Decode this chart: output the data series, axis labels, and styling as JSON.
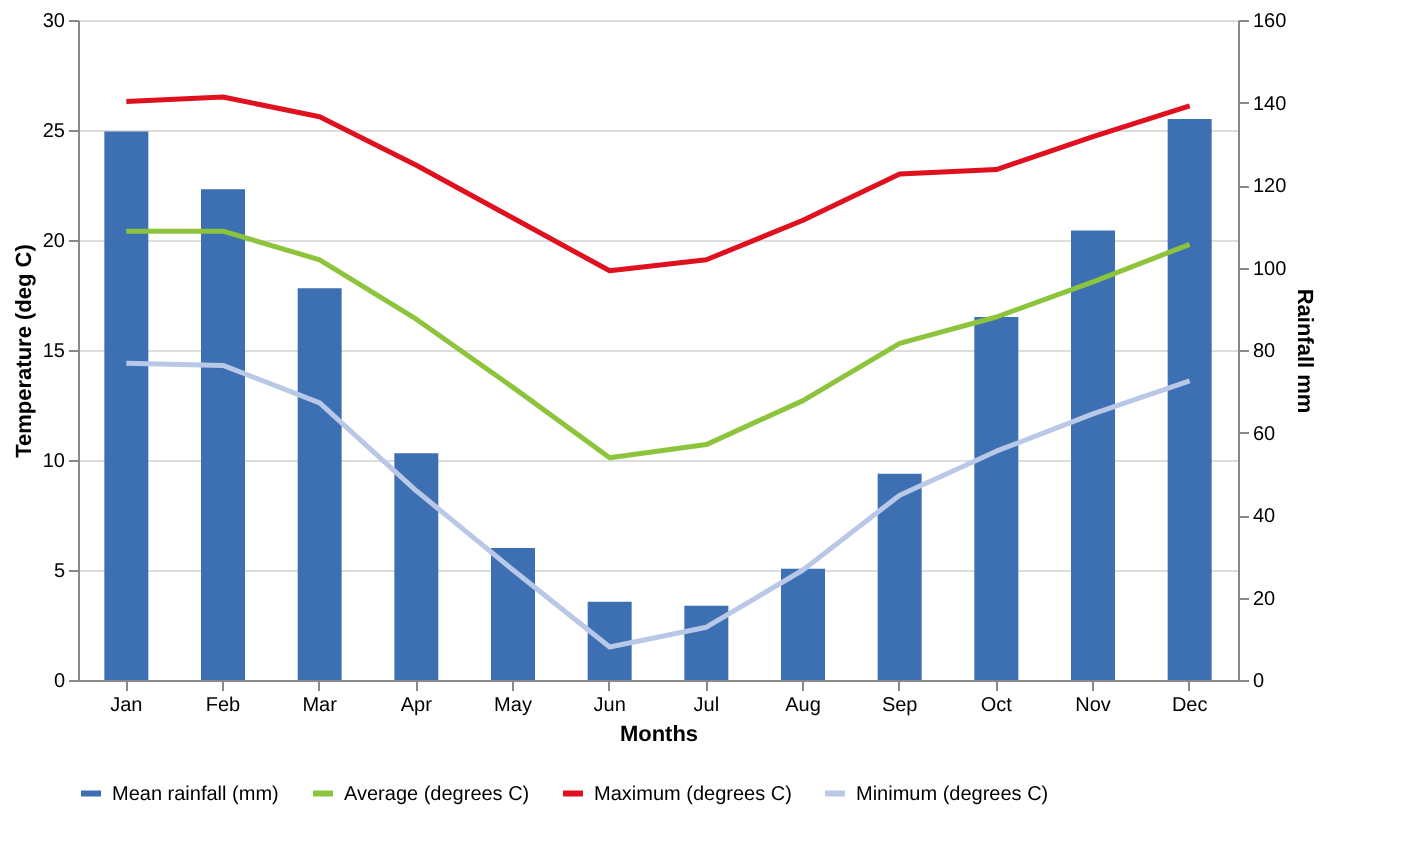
{
  "chart_data": {
    "type": "bar",
    "xlabel": "Months",
    "ylabel": "Temperature (deg C)",
    "y2label": "Rainfall mm",
    "categories": [
      "Jan",
      "Feb",
      "Mar",
      "Apr",
      "May",
      "Jun",
      "Jul",
      "Aug",
      "Sep",
      "Oct",
      "Nov",
      "Dec"
    ],
    "series": [
      {
        "name": "Mean rainfall (mm)",
        "axis": "y2",
        "color": "#3d6fb3",
        "values": [
          133,
          119,
          95,
          55,
          32,
          19,
          18,
          27,
          50,
          88,
          109,
          136
        ]
      },
      {
        "name": "Average (degrees C)",
        "type": "line",
        "color": "#8cc43c",
        "values": [
          20.4,
          20.4,
          19.1,
          16.4,
          13.3,
          10.1,
          10.7,
          12.7,
          15.3,
          16.5,
          18.1,
          19.8
        ]
      },
      {
        "name": "Maximum (degrees C)",
        "type": "line",
        "color": "#e0101e",
        "values": [
          26.3,
          26.5,
          25.6,
          23.4,
          21.0,
          18.6,
          19.1,
          20.9,
          23.0,
          23.2,
          24.7,
          26.1
        ]
      },
      {
        "name": "Minimum (degrees C)",
        "type": "line",
        "color": "#b9c8e6",
        "values": [
          14.4,
          14.3,
          12.6,
          8.6,
          5.0,
          1.5,
          2.4,
          5.0,
          8.4,
          10.4,
          12.1,
          13.6
        ]
      }
    ],
    "ylim": [
      0,
      30
    ],
    "yticks": [
      0,
      5,
      10,
      15,
      20,
      25,
      30
    ],
    "y2lim": [
      0,
      160
    ],
    "y2ticks": [
      0,
      20,
      40,
      60,
      80,
      100,
      120,
      140,
      160
    ],
    "grid": "y",
    "legend": "bottom",
    "marker": "none",
    "line_style": "solid"
  }
}
